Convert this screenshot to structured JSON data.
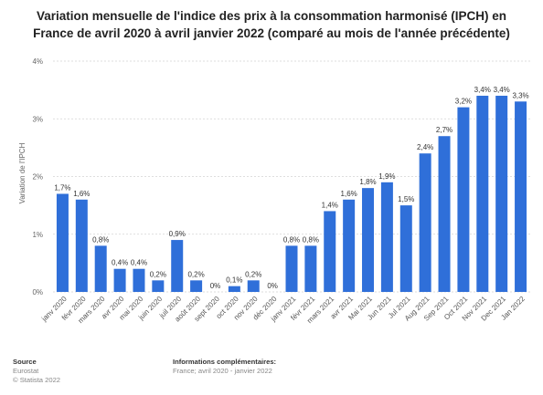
{
  "title": "Variation mensuelle de l'indice des prix à la consommation harmonisé (IPCH) en France de avril 2020 à avril janvier 2022 (comparé au mois de l'année précédente)",
  "chart_data": {
    "type": "bar",
    "title": "Variation mensuelle de l'indice des prix à la consommation harmonisé (IPCH) en France de avril 2020 à avril janvier 2022 (comparé au mois de l'année précédente)",
    "xlabel": "",
    "ylabel": "Variation de l'IPCH",
    "ylim": [
      0,
      4
    ],
    "yticks": [
      "0%",
      "1%",
      "2%",
      "3%",
      "4%"
    ],
    "grid": true,
    "color": "#2f6fd9",
    "categories": [
      "janv 2020",
      "févr 2020",
      "mars 2020",
      "avr 2020",
      "mai 2020",
      "juin 2020",
      "juil 2020",
      "août 2020",
      "sept 2020",
      "oct 2020",
      "nov 2020",
      "déc 2020",
      "janv 2021",
      "févr 2021",
      "mars 2021",
      "avr 2021",
      "Mai 2021",
      "Jun 2021",
      "Jul 2021",
      "Aug 2021",
      "Sep 2021",
      "Oct 2021",
      "Nov 2021",
      "Dec 2021",
      "Jan 2022"
    ],
    "values": [
      1.7,
      1.6,
      0.8,
      0.4,
      0.4,
      0.2,
      0.9,
      0.2,
      0,
      0.1,
      0.2,
      0,
      0.8,
      0.8,
      1.4,
      1.6,
      1.8,
      1.9,
      1.5,
      2.4,
      2.7,
      3.2,
      3.4,
      3.4,
      3.3
    ],
    "labels": [
      "1,7%",
      "1,6%",
      "0,8%",
      "0,4%",
      "0,4%",
      "0,2%",
      "0,9%",
      "0,2%",
      "0%",
      "0,1%",
      "0,2%",
      "0%",
      "0,8%",
      "0,8%",
      "1,4%",
      "1,6%",
      "1,8%",
      "1,9%",
      "1,5%",
      "2,4%",
      "2,7%",
      "3,2%",
      "3,4%",
      "3,4%",
      "3,3%"
    ]
  },
  "footer": {
    "source_heading": "Source",
    "source_lines": [
      "Eurostat",
      "© Statista 2022"
    ],
    "info_heading": "Informations complémentaires:",
    "info_lines": [
      "France; avril 2020 - janvier 2022"
    ]
  }
}
